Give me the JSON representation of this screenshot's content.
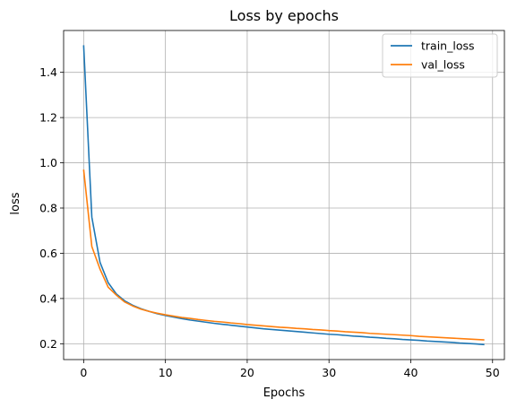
{
  "chart_data": {
    "type": "line",
    "title": "Loss by epochs",
    "xlabel": "Epochs",
    "ylabel": "loss",
    "xlim": [
      -2.45,
      51.45
    ],
    "ylim": [
      0.13,
      1.585
    ],
    "xticks": [
      0,
      10,
      20,
      30,
      40,
      50
    ],
    "yticks": [
      0.2,
      0.4,
      0.6,
      0.8,
      1.0,
      1.2,
      1.4
    ],
    "ytick_labels": [
      "0.2",
      "0.4",
      "0.6",
      "0.8",
      "1.0",
      "1.2",
      "1.4"
    ],
    "grid": true,
    "legend_position": "top-right",
    "x": [
      0,
      1,
      2,
      3,
      4,
      5,
      6,
      7,
      8,
      9,
      10,
      11,
      12,
      13,
      14,
      15,
      16,
      17,
      18,
      19,
      20,
      21,
      22,
      23,
      24,
      25,
      26,
      27,
      28,
      29,
      30,
      31,
      32,
      33,
      34,
      35,
      36,
      37,
      38,
      39,
      40,
      41,
      42,
      43,
      44,
      45,
      46,
      47,
      48,
      49
    ],
    "series": [
      {
        "name": "train_loss",
        "color": "#1f77b4",
        "values": [
          1.52,
          0.76,
          0.56,
          0.47,
          0.42,
          0.39,
          0.37,
          0.355,
          0.343,
          0.333,
          0.325,
          0.318,
          0.311,
          0.305,
          0.3,
          0.295,
          0.29,
          0.286,
          0.282,
          0.278,
          0.274,
          0.27,
          0.266,
          0.263,
          0.26,
          0.257,
          0.254,
          0.251,
          0.248,
          0.245,
          0.242,
          0.24,
          0.237,
          0.234,
          0.232,
          0.229,
          0.227,
          0.224,
          0.222,
          0.219,
          0.217,
          0.215,
          0.212,
          0.21,
          0.208,
          0.206,
          0.203,
          0.201,
          0.199,
          0.196
        ]
      },
      {
        "name": "val_loss",
        "color": "#ff7f0e",
        "values": [
          0.97,
          0.63,
          0.53,
          0.45,
          0.415,
          0.385,
          0.367,
          0.353,
          0.343,
          0.335,
          0.328,
          0.322,
          0.316,
          0.312,
          0.307,
          0.303,
          0.299,
          0.296,
          0.292,
          0.289,
          0.285,
          0.282,
          0.279,
          0.276,
          0.273,
          0.271,
          0.268,
          0.266,
          0.263,
          0.261,
          0.258,
          0.256,
          0.253,
          0.251,
          0.249,
          0.246,
          0.244,
          0.242,
          0.24,
          0.238,
          0.236,
          0.233,
          0.231,
          0.229,
          0.227,
          0.225,
          0.223,
          0.221,
          0.219,
          0.217
        ]
      }
    ]
  }
}
